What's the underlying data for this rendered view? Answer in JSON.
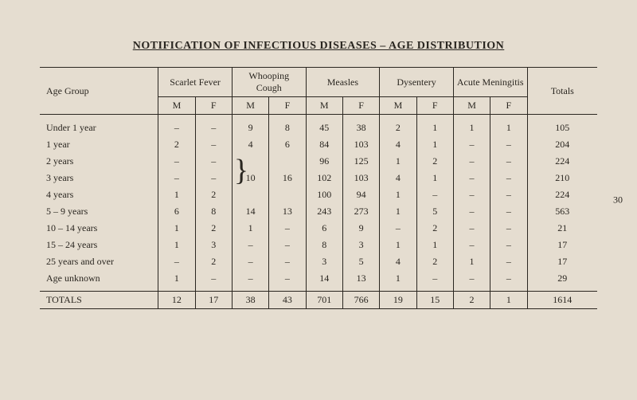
{
  "title": "NOTIFICATION OF INFECTIOUS DISEASES – AGE DISTRIBUTION",
  "page_number": "30",
  "table": {
    "type": "table",
    "background_color": "#e5ddd0",
    "text_color": "#2a2620",
    "border_color": "#2a2620",
    "font_family": "Times New Roman",
    "font_size_body": 12,
    "font_size_title": 14,
    "columns": {
      "age_group": "Age Group",
      "groups": [
        {
          "label": "Scarlet Fever",
          "sub": [
            "M",
            "F"
          ]
        },
        {
          "label": "Whooping Cough",
          "sub": [
            "M",
            "F"
          ]
        },
        {
          "label": "Measles",
          "sub": [
            "M",
            "F"
          ]
        },
        {
          "label": "Dysentery",
          "sub": [
            "M",
            "F"
          ]
        },
        {
          "label": "Acute Meningitis",
          "sub": [
            "M",
            "F"
          ]
        }
      ],
      "totals": "Totals"
    },
    "brace_rows": {
      "column": "Whooping Cough",
      "spans": [
        "2 years",
        "3 years",
        "4 years"
      ],
      "M": "10",
      "F": "16"
    },
    "rows": [
      {
        "age": "Under 1 year",
        "cells": [
          "–",
          "–",
          "9",
          "8",
          "45",
          "38",
          "2",
          "1",
          "1",
          "1"
        ],
        "total": "105"
      },
      {
        "age": "1 year",
        "cells": [
          "2",
          "–",
          "4",
          "6",
          "84",
          "103",
          "4",
          "1",
          "–",
          "–"
        ],
        "total": "204"
      },
      {
        "age": "2 years",
        "cells": [
          "–",
          "–",
          "",
          "",
          "96",
          "125",
          "1",
          "2",
          "–",
          "–"
        ],
        "total": "224"
      },
      {
        "age": "3 years",
        "cells": [
          "–",
          "–",
          "10",
          "16",
          "102",
          "103",
          "4",
          "1",
          "–",
          "–"
        ],
        "total": "210",
        "brace": true
      },
      {
        "age": "4 years",
        "cells": [
          "1",
          "2",
          "",
          "",
          "100",
          "94",
          "1",
          "–",
          "–",
          "–"
        ],
        "total": "224"
      },
      {
        "age": "5 – 9 years",
        "cells": [
          "6",
          "8",
          "14",
          "13",
          "243",
          "273",
          "1",
          "5",
          "–",
          "–"
        ],
        "total": "563"
      },
      {
        "age": "10 – 14 years",
        "cells": [
          "1",
          "2",
          "1",
          "–",
          "6",
          "9",
          "–",
          "2",
          "–",
          "–"
        ],
        "total": "21"
      },
      {
        "age": "15 – 24 years",
        "cells": [
          "1",
          "3",
          "–",
          "–",
          "8",
          "3",
          "1",
          "1",
          "–",
          "–"
        ],
        "total": "17"
      },
      {
        "age": "25 years and over",
        "cells": [
          "–",
          "2",
          "–",
          "–",
          "3",
          "5",
          "4",
          "2",
          "1",
          "–"
        ],
        "total": "17"
      },
      {
        "age": "Age unknown",
        "cells": [
          "1",
          "–",
          "–",
          "–",
          "14",
          "13",
          "1",
          "–",
          "–",
          "–"
        ],
        "total": "29"
      }
    ],
    "totals_row": {
      "label": "TOTALS",
      "cells": [
        "12",
        "17",
        "38",
        "43",
        "701",
        "766",
        "19",
        "15",
        "2",
        "1"
      ],
      "total": "1614"
    }
  }
}
